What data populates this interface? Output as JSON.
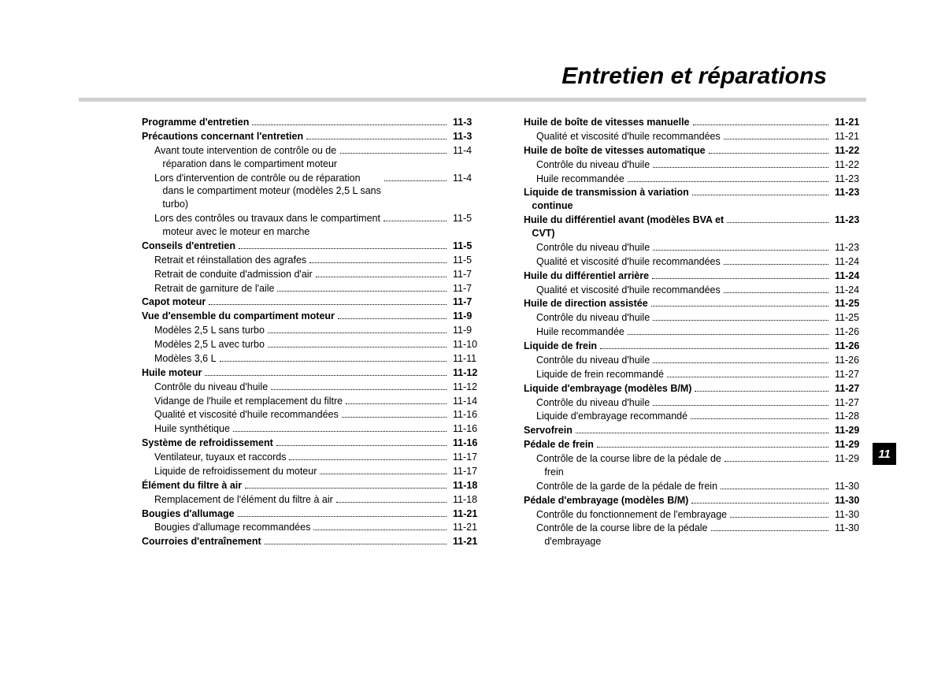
{
  "title": "Entretien et réparations",
  "tab": "11",
  "left": [
    {
      "t": "b",
      "l": "Programme d'entretien",
      "p": "11-3"
    },
    {
      "t": "b",
      "l": "Précautions concernant l'entretien",
      "p": "11-3"
    },
    {
      "t": "s",
      "l": "Avant toute intervention de contrôle ou de\n   réparation dans le compartiment moteur",
      "p": "11-4"
    },
    {
      "t": "s",
      "l": "Lors d'intervention de contrôle ou de réparation\n   dans le compartiment moteur (modèles 2,5 L sans\n   turbo)",
      "p": "11-4"
    },
    {
      "t": "s",
      "l": "Lors des contrôles ou travaux dans le compartiment\n   moteur avec le moteur en marche",
      "p": "11-5"
    },
    {
      "t": "b",
      "l": "Conseils d'entretien",
      "p": "11-5"
    },
    {
      "t": "s",
      "l": "Retrait et réinstallation des agrafes",
      "p": "11-5"
    },
    {
      "t": "s",
      "l": "Retrait de conduite d'admission d'air",
      "p": "11-7"
    },
    {
      "t": "s",
      "l": "Retrait de garniture de l'aile",
      "p": "11-7"
    },
    {
      "t": "b",
      "l": "Capot moteur",
      "p": "11-7"
    },
    {
      "t": "b",
      "l": "Vue d'ensemble du compartiment moteur",
      "p": "11-9"
    },
    {
      "t": "s",
      "l": "Modèles 2,5 L sans turbo",
      "p": "11-9"
    },
    {
      "t": "s",
      "l": "Modèles 2,5 L avec turbo",
      "p": "11-10"
    },
    {
      "t": "s",
      "l": "Modèles 3,6 L",
      "p": "11-11"
    },
    {
      "t": "b",
      "l": "Huile moteur",
      "p": "11-12"
    },
    {
      "t": "s",
      "l": "Contrôle du niveau d'huile",
      "p": "11-12"
    },
    {
      "t": "s",
      "l": "Vidange de l'huile et remplacement du filtre",
      "p": "11-14"
    },
    {
      "t": "s",
      "l": "Qualité et viscosité d'huile recommandées",
      "p": "11-16"
    },
    {
      "t": "s",
      "l": "Huile synthétique",
      "p": "11-16"
    },
    {
      "t": "b",
      "l": "Système de refroidissement",
      "p": "11-16"
    },
    {
      "t": "s",
      "l": "Ventilateur, tuyaux et raccords",
      "p": "11-17"
    },
    {
      "t": "s",
      "l": "Liquide de refroidissement du moteur",
      "p": "11-17"
    },
    {
      "t": "b",
      "l": "Élément du filtre à air",
      "p": "11-18"
    },
    {
      "t": "s",
      "l": "Remplacement de l'élément du filtre à air",
      "p": "11-18"
    },
    {
      "t": "b",
      "l": "Bougies d'allumage",
      "p": "11-21"
    },
    {
      "t": "s",
      "l": "Bougies d'allumage recommandées",
      "p": "11-21"
    },
    {
      "t": "b",
      "l": "Courroies d'entraînement",
      "p": "11-21"
    }
  ],
  "right": [
    {
      "t": "b",
      "l": "Huile de boîte de vitesses manuelle",
      "p": "11-21"
    },
    {
      "t": "s",
      "l": "Qualité et viscosité d'huile recommandées",
      "p": "11-21"
    },
    {
      "t": "b",
      "l": "Huile de boîte de vitesses automatique",
      "p": "11-22"
    },
    {
      "t": "s",
      "l": "Contrôle du niveau d'huile",
      "p": "11-22"
    },
    {
      "t": "s",
      "l": "Huile recommandée",
      "p": "11-23"
    },
    {
      "t": "b",
      "l": "Liquide de transmission à variation\n   continue",
      "p": "11-23"
    },
    {
      "t": "b",
      "l": "Huile du différentiel avant (modèles BVA et\n   CVT)",
      "p": "11-23"
    },
    {
      "t": "s",
      "l": "Contrôle du niveau d'huile",
      "p": "11-23"
    },
    {
      "t": "s",
      "l": "Qualité et viscosité d'huile recommandées",
      "p": "11-24"
    },
    {
      "t": "b",
      "l": "Huile du différentiel arrière",
      "p": "11-24"
    },
    {
      "t": "s",
      "l": "Qualité et viscosité d'huile recommandées",
      "p": "11-24"
    },
    {
      "t": "b",
      "l": "Huile de direction assistée",
      "p": "11-25"
    },
    {
      "t": "s",
      "l": "Contrôle du niveau d'huile",
      "p": "11-25"
    },
    {
      "t": "s",
      "l": "Huile recommandée",
      "p": "11-26"
    },
    {
      "t": "b",
      "l": "Liquide de frein",
      "p": "11-26"
    },
    {
      "t": "s",
      "l": "Contrôle du niveau d'huile",
      "p": "11-26"
    },
    {
      "t": "s",
      "l": "Liquide de frein recommandé",
      "p": "11-27"
    },
    {
      "t": "b",
      "l": "Liquide d'embrayage (modèles B/M)",
      "p": "11-27"
    },
    {
      "t": "s",
      "l": "Contrôle du niveau d'huile",
      "p": "11-27"
    },
    {
      "t": "s",
      "l": "Liquide d'embrayage recommandé",
      "p": "11-28"
    },
    {
      "t": "b",
      "l": "Servofrein",
      "p": "11-29"
    },
    {
      "t": "b",
      "l": "Pédale de frein",
      "p": "11-29"
    },
    {
      "t": "s",
      "l": "Contrôle de la course libre de la pédale de\n   frein",
      "p": "11-29"
    },
    {
      "t": "s",
      "l": "Contrôle de la garde de la pédale de frein",
      "p": "11-30"
    },
    {
      "t": "b",
      "l": "Pédale d'embrayage (modèles B/M)",
      "p": "11-30"
    },
    {
      "t": "s",
      "l": "Contrôle du fonctionnement de l'embrayage",
      "p": "11-30"
    },
    {
      "t": "s",
      "l": "Contrôle de la course libre de la pédale\n   d'embrayage",
      "p": "11-30"
    }
  ]
}
